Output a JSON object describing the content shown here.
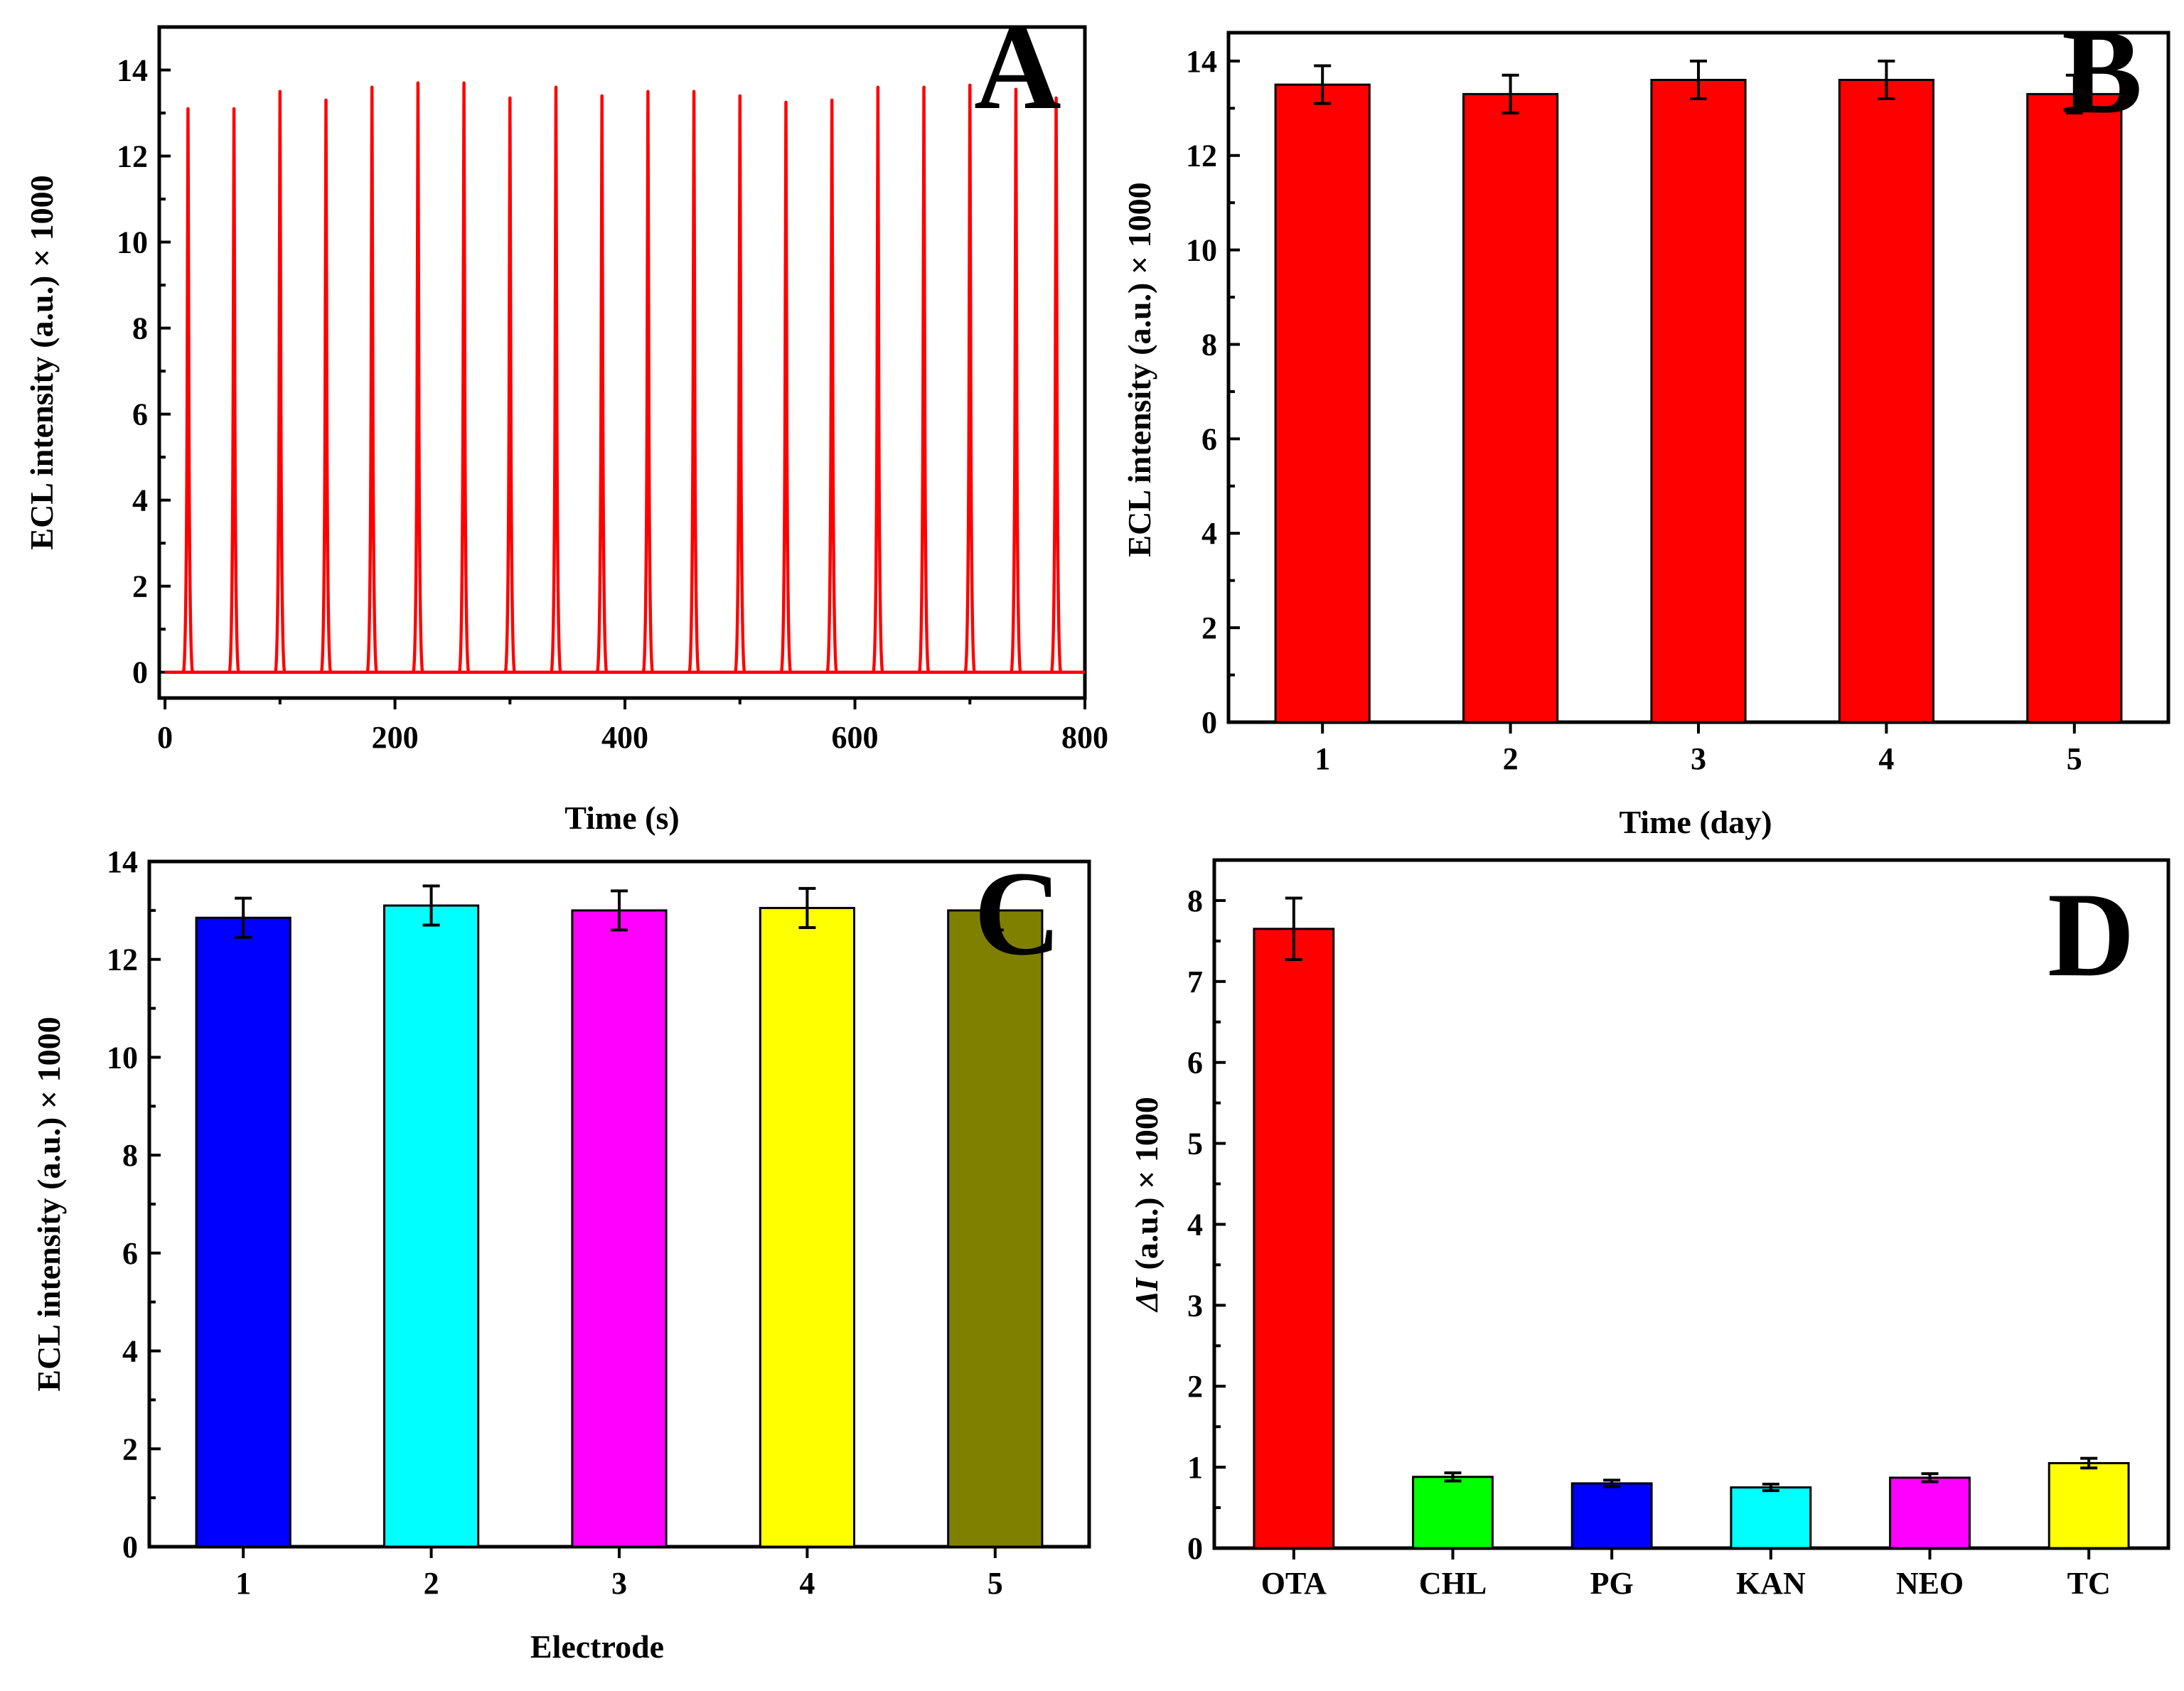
{
  "chart_data": [
    {
      "panel": "A",
      "type": "line",
      "title": "",
      "xlabel": "Time (s)",
      "ylabel": "ECL intensity (a.u.) × 1000",
      "xlim": [
        -5,
        800
      ],
      "ylim": [
        -0.6,
        15
      ],
      "xticks": [
        0,
        200,
        400,
        600,
        800
      ],
      "yticks": [
        0,
        2,
        4,
        6,
        8,
        10,
        12,
        14
      ],
      "color": "#ff0000",
      "baseline": 0,
      "peak_times": [
        20,
        60,
        100,
        140,
        180,
        220,
        260,
        300,
        340,
        380,
        420,
        460,
        500,
        540,
        580,
        620,
        660,
        700,
        740,
        775
      ],
      "peak_values": [
        13.1,
        13.1,
        13.5,
        13.3,
        13.6,
        13.7,
        13.7,
        13.35,
        13.6,
        13.4,
        13.5,
        13.5,
        13.4,
        13.25,
        13.3,
        13.6,
        13.6,
        13.65,
        13.55,
        13.35
      ],
      "panel_label": "A"
    },
    {
      "panel": "B",
      "type": "bar",
      "title": "",
      "xlabel": "Time (day)",
      "ylabel": "ECL intensity (a.u.) × 1000",
      "categories": [
        "1",
        "2",
        "3",
        "4",
        "5"
      ],
      "values": [
        13.5,
        13.3,
        13.6,
        13.6,
        13.3
      ],
      "errors": [
        0.4,
        0.4,
        0.4,
        0.4,
        0.4
      ],
      "colors": [
        "#ff0000",
        "#ff0000",
        "#ff0000",
        "#ff0000",
        "#ff0000"
      ],
      "ylim": [
        0,
        14.6
      ],
      "yticks": [
        0,
        2,
        4,
        6,
        8,
        10,
        12,
        14
      ],
      "panel_label": "B"
    },
    {
      "panel": "C",
      "type": "bar",
      "title": "",
      "xlabel": "Electrode",
      "ylabel": "ECL intensity (a.u.) × 1000",
      "categories": [
        "1",
        "2",
        "3",
        "4",
        "5"
      ],
      "values": [
        12.85,
        13.1,
        13.0,
        13.05,
        13.0
      ],
      "errors": [
        0.4,
        0.4,
        0.4,
        0.4,
        0.4
      ],
      "colors": [
        "#0000ff",
        "#00ffff",
        "#ff00ff",
        "#ffff00",
        "#808000"
      ],
      "ylim": [
        0,
        14.0
      ],
      "yticks": [
        0,
        2,
        4,
        6,
        8,
        10,
        12,
        14
      ],
      "panel_label": "C"
    },
    {
      "panel": "D",
      "type": "bar",
      "title": "",
      "xlabel": "",
      "ylabel_symbol": "ΔI",
      "ylabel_rest": " (a.u.) × 1000",
      "categories": [
        "OTA",
        "CHL",
        "PG",
        "KAN",
        "NEO",
        "TC"
      ],
      "values": [
        7.65,
        0.88,
        0.8,
        0.75,
        0.87,
        1.05
      ],
      "errors": [
        0.38,
        0.05,
        0.04,
        0.04,
        0.05,
        0.06
      ],
      "colors": [
        "#ff0000",
        "#00ff00",
        "#0000ff",
        "#00ffff",
        "#ff00ff",
        "#ffff00"
      ],
      "ylim": [
        0,
        8.5
      ],
      "yticks": [
        0,
        1,
        2,
        3,
        4,
        5,
        6,
        7,
        8
      ],
      "panel_label": "D"
    }
  ]
}
